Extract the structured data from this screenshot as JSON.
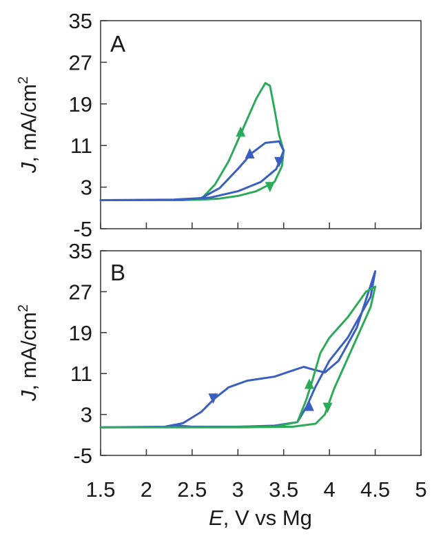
{
  "chart_data": [
    {
      "panel": "A",
      "type": "line",
      "xlim": [
        1.5,
        5
      ],
      "ylim": [
        -5,
        35
      ],
      "yticks": [
        "35",
        "27",
        "19",
        "11",
        "3",
        "-5"
      ],
      "ylabel_italic": "J",
      "ylabel_rest": ", mA/cm",
      "ylabel_sup": "2",
      "series": [
        {
          "color": "#2bab5a",
          "points": [
            [
              1.5,
              0.5
            ],
            [
              2.4,
              0.5
            ],
            [
              2.6,
              0.7
            ],
            [
              2.75,
              3.5
            ],
            [
              2.9,
              8
            ],
            [
              3.05,
              14
            ],
            [
              3.2,
              20
            ],
            [
              3.3,
              23
            ],
            [
              3.35,
              22.5
            ],
            [
              3.4,
              18
            ],
            [
              3.45,
              13
            ],
            [
              3.5,
              10
            ],
            [
              3.48,
              7
            ],
            [
              3.4,
              4
            ],
            [
              3.2,
              2.2
            ],
            [
              3.0,
              1.3
            ],
            [
              2.8,
              0.8
            ],
            [
              2.6,
              0.6
            ],
            [
              2.3,
              0.5
            ],
            [
              1.5,
              0.5
            ]
          ],
          "arrows": [
            {
              "x": 3.03,
              "y": 13.5,
              "dir": "up"
            },
            {
              "x": 3.35,
              "y": 3.2,
              "dir": "down"
            }
          ]
        },
        {
          "color": "#3a5fc0",
          "points": [
            [
              1.5,
              0.5
            ],
            [
              2.3,
              0.6
            ],
            [
              2.6,
              0.9
            ],
            [
              2.8,
              2.8
            ],
            [
              3.0,
              6.5
            ],
            [
              3.15,
              9.5
            ],
            [
              3.3,
              11.5
            ],
            [
              3.45,
              11.8
            ],
            [
              3.5,
              10
            ],
            [
              3.42,
              6.5
            ],
            [
              3.25,
              4
            ],
            [
              3.0,
              2.2
            ],
            [
              2.7,
              1.0
            ],
            [
              2.4,
              0.6
            ],
            [
              1.5,
              0.5
            ]
          ],
          "arrows": [
            {
              "x": 3.13,
              "y": 9.3,
              "dir": "up"
            },
            {
              "x": 3.45,
              "y": 8,
              "dir": "down"
            }
          ]
        }
      ]
    },
    {
      "panel": "B",
      "type": "line",
      "xlim": [
        1.5,
        5
      ],
      "ylim": [
        -5,
        35
      ],
      "xticks": [
        "1.5",
        "2",
        "2.5",
        "3",
        "3.5",
        "4",
        "4.5",
        "5"
      ],
      "yticks": [
        "35",
        "27",
        "19",
        "11",
        "3",
        "-5"
      ],
      "xlabel_italic": "E",
      "xlabel_rest": ", V vs Mg",
      "ylabel_italic": "J",
      "ylabel_rest": ", mA/cm",
      "ylabel_sup": "2",
      "series": [
        {
          "color": "#3a5fc0",
          "points": [
            [
              1.5,
              0.5
            ],
            [
              2.2,
              0.6
            ],
            [
              2.4,
              1.3
            ],
            [
              2.6,
              3.5
            ],
            [
              2.75,
              6.2
            ],
            [
              2.9,
              8.3
            ],
            [
              3.1,
              9.6
            ],
            [
              3.4,
              10.4
            ],
            [
              3.6,
              11.6
            ],
            [
              3.72,
              12.3
            ],
            [
              3.82,
              11.8
            ],
            [
              3.95,
              11.2
            ],
            [
              4.1,
              13.5
            ],
            [
              4.3,
              20
            ],
            [
              4.5,
              31
            ],
            [
              4.45,
              26
            ],
            [
              4.2,
              18
            ],
            [
              4.0,
              13.5
            ],
            [
              3.85,
              8.5
            ],
            [
              3.75,
              4.5
            ],
            [
              3.65,
              1.5
            ],
            [
              3.4,
              0.8
            ],
            [
              3.0,
              0.6
            ],
            [
              2.5,
              0.6
            ],
            [
              2.3,
              0.9
            ],
            [
              2.25,
              0.6
            ],
            [
              1.5,
              0.5
            ]
          ],
          "arrows": [
            {
              "x": 2.73,
              "y": 6.3,
              "dir": "down"
            },
            {
              "x": 3.78,
              "y": 4.5,
              "dir": "up"
            }
          ]
        },
        {
          "color": "#2bab5a",
          "points": [
            [
              1.5,
              0.5
            ],
            [
              2.5,
              0.5
            ],
            [
              3.4,
              0.6
            ],
            [
              3.65,
              1.5
            ],
            [
              3.75,
              6
            ],
            [
              3.82,
              10
            ],
            [
              3.9,
              15
            ],
            [
              4.0,
              18
            ],
            [
              4.2,
              22
            ],
            [
              4.4,
              27
            ],
            [
              4.5,
              28
            ],
            [
              4.45,
              24
            ],
            [
              4.25,
              16
            ],
            [
              4.05,
              8
            ],
            [
              3.95,
              3
            ],
            [
              3.85,
              1.2
            ],
            [
              3.6,
              0.6
            ],
            [
              3.0,
              0.5
            ],
            [
              1.5,
              0.5
            ]
          ],
          "arrows": [
            {
              "x": 3.78,
              "y": 8.8,
              "dir": "up"
            },
            {
              "x": 3.98,
              "y": 4.5,
              "dir": "down"
            }
          ]
        }
      ]
    }
  ]
}
